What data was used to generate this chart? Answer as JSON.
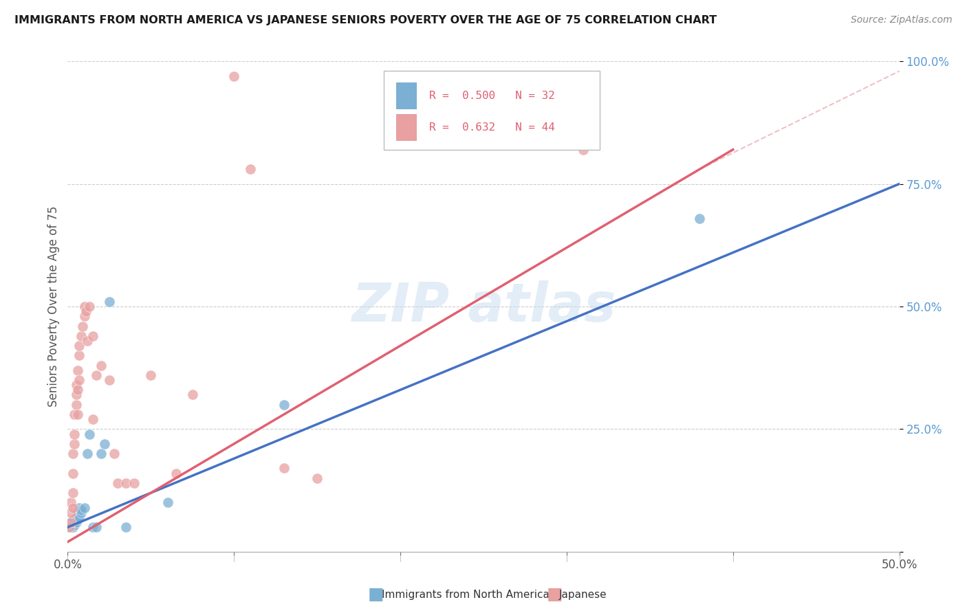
{
  "title": "IMMIGRANTS FROM NORTH AMERICA VS JAPANESE SENIORS POVERTY OVER THE AGE OF 75 CORRELATION CHART",
  "source": "Source: ZipAtlas.com",
  "ylabel": "Seniors Poverty Over the Age of 75",
  "legend_blue_label": "Immigrants from North America",
  "legend_pink_label": "Japanese",
  "R_blue": 0.5,
  "N_blue": 32,
  "R_pink": 0.632,
  "N_pink": 44,
  "xmin": 0.0,
  "xmax": 0.5,
  "ymin": 0.0,
  "ymax": 1.0,
  "yticks": [
    0.0,
    0.25,
    0.5,
    0.75,
    1.0
  ],
  "ytick_labels": [
    "",
    "25.0%",
    "50.0%",
    "75.0%",
    "100.0%"
  ],
  "xticks": [
    0.0,
    0.1,
    0.2,
    0.3,
    0.4,
    0.5
  ],
  "xtick_labels": [
    "0.0%",
    "",
    "",
    "",
    "",
    "50.0%"
  ],
  "blue_color": "#7bafd4",
  "pink_color": "#e8a0a0",
  "blue_line_color": "#4472c4",
  "pink_line_color": "#e06070",
  "blue_scatter": [
    [
      0.001,
      0.05
    ],
    [
      0.001,
      0.055
    ],
    [
      0.002,
      0.05
    ],
    [
      0.002,
      0.055
    ],
    [
      0.002,
      0.06
    ],
    [
      0.003,
      0.05
    ],
    [
      0.003,
      0.055
    ],
    [
      0.003,
      0.06
    ],
    [
      0.003,
      0.065
    ],
    [
      0.004,
      0.055
    ],
    [
      0.004,
      0.06
    ],
    [
      0.004,
      0.065
    ],
    [
      0.005,
      0.06
    ],
    [
      0.005,
      0.07
    ],
    [
      0.006,
      0.065
    ],
    [
      0.006,
      0.08
    ],
    [
      0.007,
      0.07
    ],
    [
      0.007,
      0.09
    ],
    [
      0.008,
      0.08
    ],
    [
      0.008,
      0.085
    ],
    [
      0.01,
      0.09
    ],
    [
      0.012,
      0.2
    ],
    [
      0.013,
      0.24
    ],
    [
      0.015,
      0.05
    ],
    [
      0.017,
      0.05
    ],
    [
      0.02,
      0.2
    ],
    [
      0.022,
      0.22
    ],
    [
      0.025,
      0.51
    ],
    [
      0.035,
      0.05
    ],
    [
      0.06,
      0.1
    ],
    [
      0.13,
      0.3
    ],
    [
      0.38,
      0.68
    ]
  ],
  "pink_scatter": [
    [
      0.001,
      0.05
    ],
    [
      0.002,
      0.06
    ],
    [
      0.002,
      0.08
    ],
    [
      0.002,
      0.1
    ],
    [
      0.003,
      0.09
    ],
    [
      0.003,
      0.12
    ],
    [
      0.003,
      0.16
    ],
    [
      0.003,
      0.2
    ],
    [
      0.004,
      0.22
    ],
    [
      0.004,
      0.24
    ],
    [
      0.004,
      0.28
    ],
    [
      0.005,
      0.3
    ],
    [
      0.005,
      0.32
    ],
    [
      0.005,
      0.34
    ],
    [
      0.006,
      0.28
    ],
    [
      0.006,
      0.33
    ],
    [
      0.006,
      0.37
    ],
    [
      0.007,
      0.4
    ],
    [
      0.007,
      0.42
    ],
    [
      0.007,
      0.35
    ],
    [
      0.008,
      0.44
    ],
    [
      0.009,
      0.46
    ],
    [
      0.01,
      0.48
    ],
    [
      0.01,
      0.5
    ],
    [
      0.011,
      0.49
    ],
    [
      0.012,
      0.43
    ],
    [
      0.013,
      0.5
    ],
    [
      0.015,
      0.44
    ],
    [
      0.015,
      0.27
    ],
    [
      0.017,
      0.36
    ],
    [
      0.02,
      0.38
    ],
    [
      0.025,
      0.35
    ],
    [
      0.028,
      0.2
    ],
    [
      0.03,
      0.14
    ],
    [
      0.035,
      0.14
    ],
    [
      0.04,
      0.14
    ],
    [
      0.05,
      0.36
    ],
    [
      0.065,
      0.16
    ],
    [
      0.075,
      0.32
    ],
    [
      0.1,
      0.97
    ],
    [
      0.11,
      0.78
    ],
    [
      0.13,
      0.17
    ],
    [
      0.15,
      0.15
    ],
    [
      0.31,
      0.82
    ]
  ],
  "blue_line_x": [
    0.0,
    0.5
  ],
  "blue_line_y": [
    0.05,
    0.75
  ],
  "pink_line_x": [
    0.0,
    0.4
  ],
  "pink_line_y": [
    0.02,
    0.82
  ]
}
